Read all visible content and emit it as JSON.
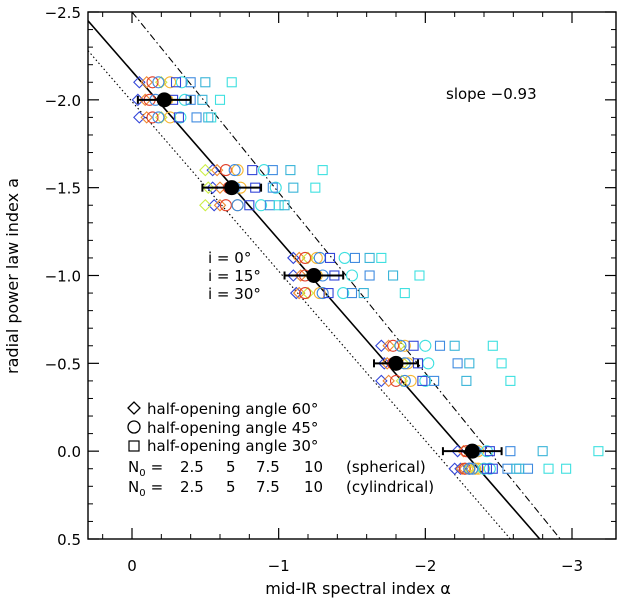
{
  "chart_data": {
    "type": "scatter",
    "xlabel": "mid-IR spectral index α",
    "ylabel": "radial power law index a",
    "xlim": [
      0.3,
      -3.3
    ],
    "ylim": [
      0.5,
      -2.5
    ],
    "xticks": [
      0,
      -1,
      -2,
      -3
    ],
    "xtick_labels": [
      "0",
      "−1",
      "−2",
      "−3"
    ],
    "yticks": [
      -2.5,
      -2.0,
      -1.5,
      -1.0,
      -0.5,
      0.0,
      0.5
    ],
    "ytick_labels": [
      "−2.5",
      "−2.0",
      "−1.5",
      "−1.0",
      "−0.5",
      "0.0",
      "0.5"
    ],
    "grid": false,
    "annotations": {
      "slope": "slope −0.93",
      "inclinations": [
        "i = 0°",
        "i = 15°",
        "i = 30°"
      ]
    },
    "legend": {
      "placement": "bottom-left",
      "markers": [
        {
          "symbol": "diamond",
          "label": "half-opening angle 60°"
        },
        {
          "symbol": "circle",
          "label": "half-opening angle 45°"
        },
        {
          "symbol": "square",
          "label": "half-opening angle 30°"
        }
      ],
      "n0_rows": [
        {
          "prefix": "N",
          "sub": "0",
          "eq": "=",
          "suffix": "(spherical)",
          "values": [
            {
              "text": "2.5",
              "color": "#3346d8"
            },
            {
              "text": "5",
              "color": "#3f8be0"
            },
            {
              "text": "7.5",
              "color": "#39b4d8"
            },
            {
              "text": "10",
              "color": "#3ee0e0"
            }
          ]
        },
        {
          "prefix": "N",
          "sub": "0",
          "eq": "=",
          "suffix": "(cylindrical)",
          "values": [
            {
              "text": "2.5",
              "color": "#ccee44"
            },
            {
              "text": "5",
              "color": "#f7b733"
            },
            {
              "text": "7.5",
              "color": "#f08a30"
            },
            {
              "text": "10",
              "color": "#e0402a"
            }
          ]
        }
      ]
    },
    "lines": [
      {
        "name": "fit",
        "style": "solid",
        "points": [
          [
            0.3,
            -2.45
          ],
          [
            -2.78,
            0.5
          ]
        ]
      },
      {
        "name": "upper",
        "style": "dashdot",
        "points": [
          [
            0.0,
            -2.5
          ],
          [
            -2.92,
            0.5
          ]
        ]
      },
      {
        "name": "lower",
        "style": "dotted",
        "points": [
          [
            0.3,
            -2.28
          ],
          [
            -2.58,
            0.5
          ]
        ]
      }
    ],
    "mean_points": [
      {
        "x": -0.22,
        "y": -2.0,
        "xerr": 0.18
      },
      {
        "x": -0.68,
        "y": -1.5,
        "xerr": 0.2
      },
      {
        "x": -1.24,
        "y": -1.0,
        "xerr": 0.2
      },
      {
        "x": -1.8,
        "y": -0.5,
        "xerr": 0.15
      },
      {
        "x": -2.32,
        "y": 0.0,
        "xerr": 0.2
      }
    ],
    "model_series": [
      {
        "symbol": "diamond",
        "color": "#3346d8",
        "x": [
          -0.05,
          -0.04,
          -0.05,
          -0.55,
          -0.55,
          -0.56,
          -1.1,
          -1.1,
          -1.12,
          -1.7,
          -1.72,
          -1.7,
          -2.2,
          -2.22,
          -2.24
        ],
        "y": [
          -2.1,
          -2.0,
          -1.9,
          -1.6,
          -1.5,
          -1.4,
          -1.1,
          -1.0,
          -0.9,
          -0.6,
          -0.5,
          -0.4,
          0.1,
          0.0,
          0.1
        ]
      },
      {
        "symbol": "diamond",
        "color": "#f08a30",
        "x": [
          -0.1,
          -0.09,
          -0.1,
          -0.58,
          -0.6,
          -0.6,
          -1.14,
          -1.15,
          -1.14,
          -1.75,
          -1.74,
          -1.75,
          -2.25,
          -2.26,
          -2.27
        ],
        "y": [
          -2.1,
          -2.0,
          -1.9,
          -1.6,
          -1.5,
          -1.4,
          -1.1,
          -1.0,
          -0.9,
          -0.6,
          -0.5,
          -0.4,
          0.1,
          0.0,
          0.1
        ]
      },
      {
        "symbol": "diamond",
        "color": "#ccee44",
        "x": [
          -0.2,
          -0.22,
          -0.2,
          -0.5,
          -0.52,
          -0.5,
          -1.2,
          -1.22,
          -1.2,
          -1.82,
          -1.85,
          -1.84,
          -2.3,
          -2.32,
          -2.34
        ],
        "y": [
          -2.1,
          -2.0,
          -1.9,
          -1.6,
          -1.5,
          -1.4,
          -1.1,
          -1.0,
          -0.9,
          -0.6,
          -0.5,
          -0.4,
          0.1,
          0.0,
          0.1
        ]
      },
      {
        "symbol": "circle",
        "color": "#e0402a",
        "x": [
          -0.14,
          -0.12,
          -0.14,
          -0.64,
          -0.66,
          -0.64,
          -1.18,
          -1.18,
          -1.18,
          -1.78,
          -1.78,
          -1.8,
          -2.27,
          -2.28,
          -2.3
        ],
        "y": [
          -2.1,
          -2.0,
          -1.9,
          -1.6,
          -1.5,
          -1.4,
          -1.1,
          -1.0,
          -0.9,
          -0.6,
          -0.5,
          -0.4,
          0.1,
          0.0,
          0.1
        ]
      },
      {
        "symbol": "circle",
        "color": "#f7b733",
        "x": [
          -0.26,
          -0.24,
          -0.26,
          -0.72,
          -0.74,
          -0.72,
          -1.26,
          -1.26,
          -1.28,
          -1.86,
          -1.88,
          -1.9,
          -2.34,
          -2.36,
          -2.36
        ],
        "y": [
          -2.1,
          -2.0,
          -1.9,
          -1.6,
          -1.5,
          -1.4,
          -1.1,
          -1.0,
          -0.9,
          -0.6,
          -0.5,
          -0.4,
          0.1,
          0.0,
          0.1
        ]
      },
      {
        "symbol": "circle",
        "color": "#3ee0e0",
        "x": [
          -0.34,
          -0.36,
          -0.33,
          -0.9,
          -0.98,
          -0.88,
          -1.45,
          -1.5,
          -1.44,
          -2.0,
          -2.02,
          -2.0,
          -2.4,
          -2.42,
          -2.44
        ],
        "y": [
          -2.1,
          -2.0,
          -1.9,
          -1.6,
          -1.5,
          -1.4,
          -1.1,
          -1.0,
          -0.9,
          -0.6,
          -0.5,
          -0.4,
          0.1,
          0.0,
          0.1
        ]
      },
      {
        "symbol": "circle",
        "color": "#3f8be0",
        "x": [
          -0.18,
          -0.16,
          -0.18,
          -0.7,
          -0.7,
          -0.72,
          -1.28,
          -1.3,
          -1.3,
          -1.83,
          -1.86,
          -1.86,
          -2.3,
          -2.34,
          -2.32
        ],
        "y": [
          -2.1,
          -2.0,
          -1.9,
          -1.6,
          -1.5,
          -1.4,
          -1.1,
          -1.0,
          -0.9,
          -0.6,
          -0.5,
          -0.4,
          0.1,
          0.0,
          0.1
        ]
      },
      {
        "symbol": "square",
        "color": "#3346d8",
        "x": [
          -0.3,
          -0.28,
          -0.32,
          -0.82,
          -0.84,
          -0.8,
          -1.35,
          -1.38,
          -1.34,
          -1.92,
          -1.95,
          -1.98,
          -2.42,
          -2.44,
          -2.46
        ],
        "y": [
          -2.1,
          -2.0,
          -1.9,
          -1.6,
          -1.5,
          -1.4,
          -1.1,
          -1.0,
          -0.9,
          -0.6,
          -0.5,
          -0.4,
          0.1,
          0.0,
          0.1
        ]
      },
      {
        "symbol": "square",
        "color": "#3f8be0",
        "x": [
          -0.4,
          -0.4,
          -0.44,
          -0.96,
          -0.96,
          -0.94,
          -1.52,
          -1.62,
          -1.5,
          -2.1,
          -2.22,
          -2.06,
          -2.56,
          -2.58,
          -2.7
        ],
        "y": [
          -2.1,
          -2.0,
          -1.9,
          -1.6,
          -1.5,
          -1.4,
          -1.1,
          -1.0,
          -0.9,
          -0.6,
          -0.5,
          -0.4,
          0.1,
          0.0,
          0.1
        ]
      },
      {
        "symbol": "square",
        "color": "#3ee0e0",
        "x": [
          -0.68,
          -0.6,
          -0.54,
          -1.3,
          -1.25,
          -1.0,
          -1.7,
          -1.96,
          -1.86,
          -2.46,
          -2.52,
          -2.58,
          -2.96,
          -3.18,
          -2.84
        ],
        "y": [
          -2.1,
          -2.0,
          -1.9,
          -1.6,
          -1.5,
          -1.4,
          -1.1,
          -1.0,
          -0.9,
          -0.6,
          -0.5,
          -0.4,
          0.1,
          0.0,
          0.1
        ]
      },
      {
        "symbol": "square",
        "color": "#39b4d8",
        "x": [
          -0.5,
          -0.48,
          -0.52,
          -1.08,
          -1.1,
          -1.04,
          -1.62,
          -1.78,
          -1.58,
          -2.2,
          -2.3,
          -2.28,
          -2.64,
          -2.8,
          -2.62
        ],
        "y": [
          -2.1,
          -2.0,
          -1.9,
          -1.6,
          -1.5,
          -1.4,
          -1.1,
          -1.0,
          -0.9,
          -0.6,
          -0.5,
          -0.4,
          0.1,
          0.0,
          0.1
        ]
      }
    ]
  }
}
